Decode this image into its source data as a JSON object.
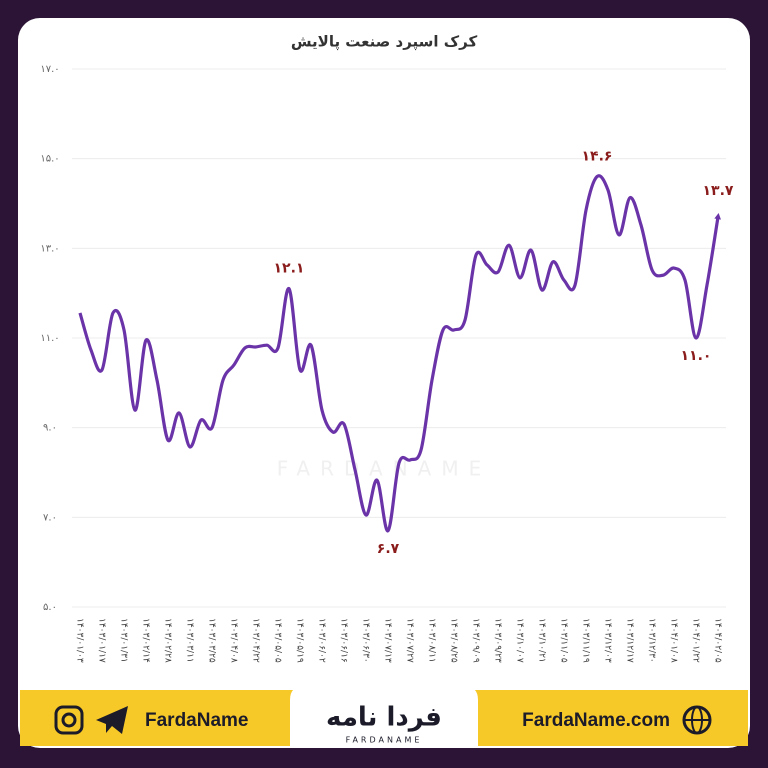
{
  "chart_data": {
    "type": "line",
    "title": "کرک اسپرد صنعت پالایش",
    "categories": [
      "۱۴۰۳/۰۱/۰۳",
      null,
      "۱۴۰۳/۰۱/۱۷",
      null,
      "۱۴۰۳/۰۱/۳۱",
      null,
      "۱۴۰۳/۰۲/۱۴",
      null,
      "۱۴۰۳/۰۲/۲۸",
      null,
      "۱۴۰۳/۰۳/۱۱",
      null,
      "۱۴۰۳/۰۳/۲۵",
      null,
      "۱۴۰۳/۰۴/۰۸",
      null,
      "۱۴۰۳/۰۴/۲۲",
      null,
      "۱۴۰۳/۰۵/۰۵",
      null,
      "۱۴۰۳/۰۵/۱۹",
      null,
      "۱۴۰۳/۰۶/۰۲",
      null,
      "۱۴۰۳/۰۶/۱۶",
      null,
      "۱۴۰۳/۰۶/۳۰",
      null,
      "۱۴۰۳/۰۷/۱۳",
      null,
      "۱۴۰۳/۰۷/۲۷",
      null,
      "۱۴۰۳/۰۸/۱۱",
      null,
      "۱۴۰۳/۰۸/۲۵",
      null,
      "۱۴۰۳/۰۹/۰۹",
      null,
      "۱۴۰۳/۰۹/۲۳",
      null,
      "۱۴۰۳/۱۰/۰۷",
      null,
      "۱۴۰۳/۱۰/۲۱",
      null,
      "۱۴۰۳/۱۱/۰۵",
      null,
      "۱۴۰۳/۱۱/۱۹",
      null,
      "۱۴۰۳/۱۲/۰۳",
      null,
      "۱۴۰۳/۱۲/۱۷",
      null,
      "۱۴۰۳/۱۲/۳۰",
      null,
      "۱۴۰۴/۰۱/۰۸",
      null,
      "۱۴۰۴/۰۱/۲۲",
      null,
      "۱۴۰۴/۰۲/۰۵"
    ],
    "values": [
      11.56,
      10.73,
      10.29,
      11.56,
      11.18,
      9.39,
      10.95,
      10.06,
      8.72,
      9.33,
      8.57,
      9.17,
      9.0,
      10.06,
      10.4,
      10.78,
      10.8,
      10.84,
      10.78,
      12.1,
      10.29,
      10.84,
      9.39,
      8.9,
      9.08,
      8.06,
      7.05,
      7.83,
      6.7,
      8.21,
      8.28,
      8.5,
      10.06,
      11.18,
      11.18,
      11.4,
      12.85,
      12.63,
      12.47,
      13.07,
      12.34,
      12.96,
      12.07,
      12.7,
      12.29,
      12.18,
      13.85,
      14.6,
      14.3,
      13.3,
      14.13,
      13.52,
      12.52,
      12.4,
      12.56,
      12.29,
      11.0,
      12.18,
      13.7
    ],
    "value_labels": [
      null,
      null,
      null,
      null,
      null,
      null,
      null,
      null,
      null,
      null,
      null,
      null,
      null,
      null,
      null,
      null,
      null,
      null,
      null,
      "۱۲.۱",
      null,
      null,
      null,
      null,
      null,
      null,
      null,
      null,
      "۶.۷",
      null,
      null,
      null,
      null,
      null,
      null,
      null,
      null,
      null,
      null,
      null,
      null,
      null,
      null,
      null,
      null,
      null,
      null,
      "۱۴.۶",
      null,
      null,
      null,
      null,
      null,
      null,
      null,
      null,
      "۱۱.۰",
      null,
      "۱۳.۷"
    ],
    "color": "#6a34a8",
    "ylim": [
      5,
      17
    ],
    "yticks": [
      {
        "value": 5,
        "label": "۵.۰"
      },
      {
        "value": 7,
        "label": "۷.۰"
      },
      {
        "value": 9,
        "label": "۹.۰"
      },
      {
        "value": 11,
        "label": "۱۱.۰"
      },
      {
        "value": 13,
        "label": "۱۳.۰"
      },
      {
        "value": 15,
        "label": "۱۵.۰"
      },
      {
        "value": 17,
        "label": "۱۷.۰"
      }
    ],
    "grid": true
  },
  "footer": {
    "left": "FardaName",
    "right": "FardaName.com",
    "logo": "فردا نامه",
    "logo_sub": "FARDANAME",
    "watermark": "FARDANAME"
  }
}
